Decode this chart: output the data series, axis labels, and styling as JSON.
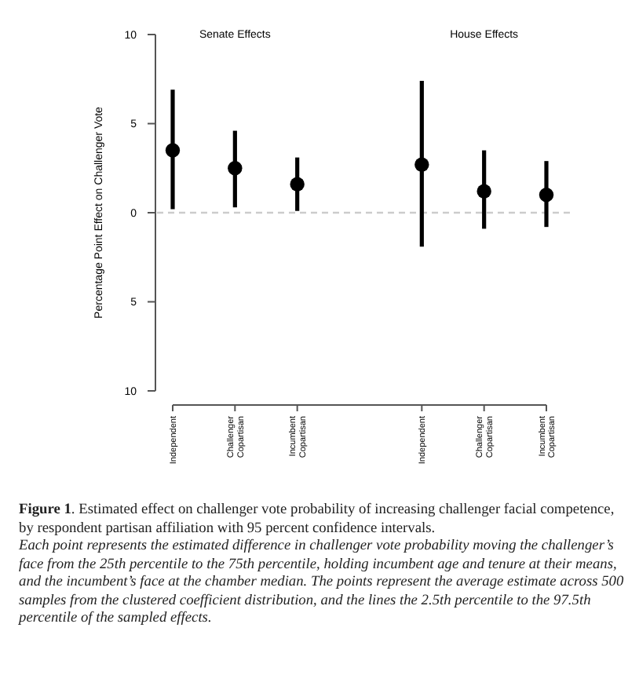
{
  "chart_data": {
    "type": "scatter",
    "ylabel": "Percentage Point Effect on Challenger Vote",
    "categories": [
      "Independent",
      "Challenger Copartisan",
      "Incumbent Copartisan",
      null,
      "Independent",
      "Challenger Copartisan",
      "Incumbent Copartisan"
    ],
    "series": [
      {
        "color": "#000000",
        "values": [
          3.5,
          2.5,
          1.6,
          null,
          2.7,
          1.2,
          1.0
        ],
        "errors": [
          [
            0.2,
            6.9
          ],
          [
            0.3,
            4.6
          ],
          [
            0.1,
            3.1
          ],
          null,
          [
            -1.9,
            7.4
          ],
          [
            -0.9,
            3.5
          ],
          [
            -0.8,
            2.9
          ]
        ]
      }
    ],
    "ylim": [
      -10,
      10
    ],
    "yticks": [
      {
        "value": 10,
        "label": "10"
      },
      {
        "value": 5,
        "label": "5"
      },
      {
        "value": 0,
        "label": "0"
      },
      {
        "value": -5,
        "label": "5"
      },
      {
        "value": -10,
        "label": "10"
      }
    ],
    "ref_lines": [
      {
        "axis": "y",
        "value": 0,
        "color": "#cccccc",
        "line_style": "dashed"
      }
    ],
    "marker": "circle",
    "annotations": [
      "Senate Effects",
      "House Effects",
      "Figure 1. Estimated effect on challenger vote probability of increasing challenger facial competence, by respondent partisan affiliation with 95 percent confidence intervals.",
      "Each point represents the estimated difference in challenger vote probability moving the challenger’s face from the 25th percentile to the 75th percentile, holding incumbent age and tenure at their means, and the incumbent’s face at the chamber median. The points represent the average estimate across 500 samples from the clustered coefficient distribution, and the lines the 2.5th percentile to the 97.5th percentile of the sampled effects."
    ]
  }
}
